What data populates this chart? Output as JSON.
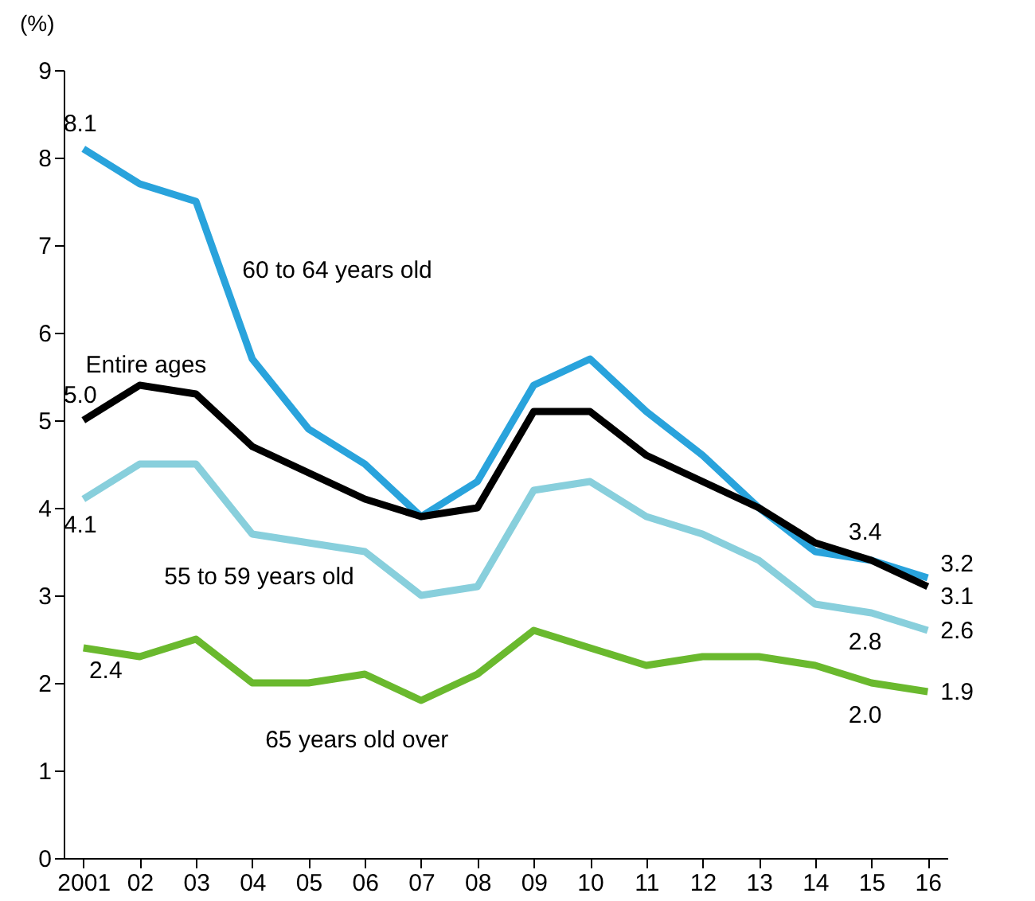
{
  "chart_data": {
    "type": "line",
    "ylabel": "(%)",
    "categories": [
      "2001",
      "02",
      "03",
      "04",
      "05",
      "06",
      "07",
      "08",
      "09",
      "10",
      "11",
      "12",
      "13",
      "14",
      "15",
      "16"
    ],
    "ylim": [
      0,
      9
    ],
    "yticks": [
      0,
      1,
      2,
      3,
      4,
      5,
      6,
      7,
      8,
      9
    ],
    "series": [
      {
        "name": "65 years old over",
        "color": "#6ab92e",
        "values": [
          2.4,
          2.3,
          2.5,
          2.0,
          2.0,
          2.1,
          1.8,
          2.1,
          2.6,
          2.4,
          2.2,
          2.3,
          2.3,
          2.2,
          2.0,
          1.9
        ],
        "value_labels": [
          "2.4",
          null,
          null,
          null,
          null,
          null,
          null,
          null,
          null,
          null,
          null,
          null,
          null,
          null,
          "2.0",
          "1.9"
        ]
      },
      {
        "name": "55 to 59 years old",
        "color": "#88cfdc",
        "values": [
          4.1,
          4.5,
          4.5,
          3.7,
          3.6,
          3.5,
          3.0,
          3.1,
          4.2,
          4.3,
          3.9,
          3.7,
          3.4,
          2.9,
          2.8,
          2.6
        ],
        "value_labels": [
          "4.1",
          null,
          null,
          null,
          null,
          null,
          null,
          null,
          null,
          null,
          null,
          null,
          null,
          null,
          "2.8",
          "2.6"
        ]
      },
      {
        "name": "60 to 64 years old",
        "color": "#29a3dc",
        "values": [
          8.1,
          7.7,
          7.5,
          5.7,
          4.9,
          4.5,
          3.9,
          4.3,
          5.4,
          5.7,
          5.1,
          4.6,
          4.0,
          3.5,
          3.4,
          3.2
        ],
        "value_labels": [
          "8.1",
          null,
          null,
          null,
          null,
          null,
          null,
          null,
          null,
          null,
          null,
          null,
          null,
          null,
          "3.4",
          "3.2"
        ]
      },
      {
        "name": "Entire ages",
        "color": "#000000",
        "values": [
          5.0,
          5.4,
          5.3,
          4.7,
          4.4,
          4.1,
          3.9,
          4.0,
          5.1,
          5.1,
          4.6,
          4.3,
          4.0,
          3.6,
          3.4,
          3.1
        ],
        "value_labels": [
          "5.0",
          null,
          null,
          null,
          null,
          null,
          null,
          null,
          null,
          null,
          null,
          null,
          null,
          null,
          null,
          "3.1"
        ]
      }
    ]
  }
}
